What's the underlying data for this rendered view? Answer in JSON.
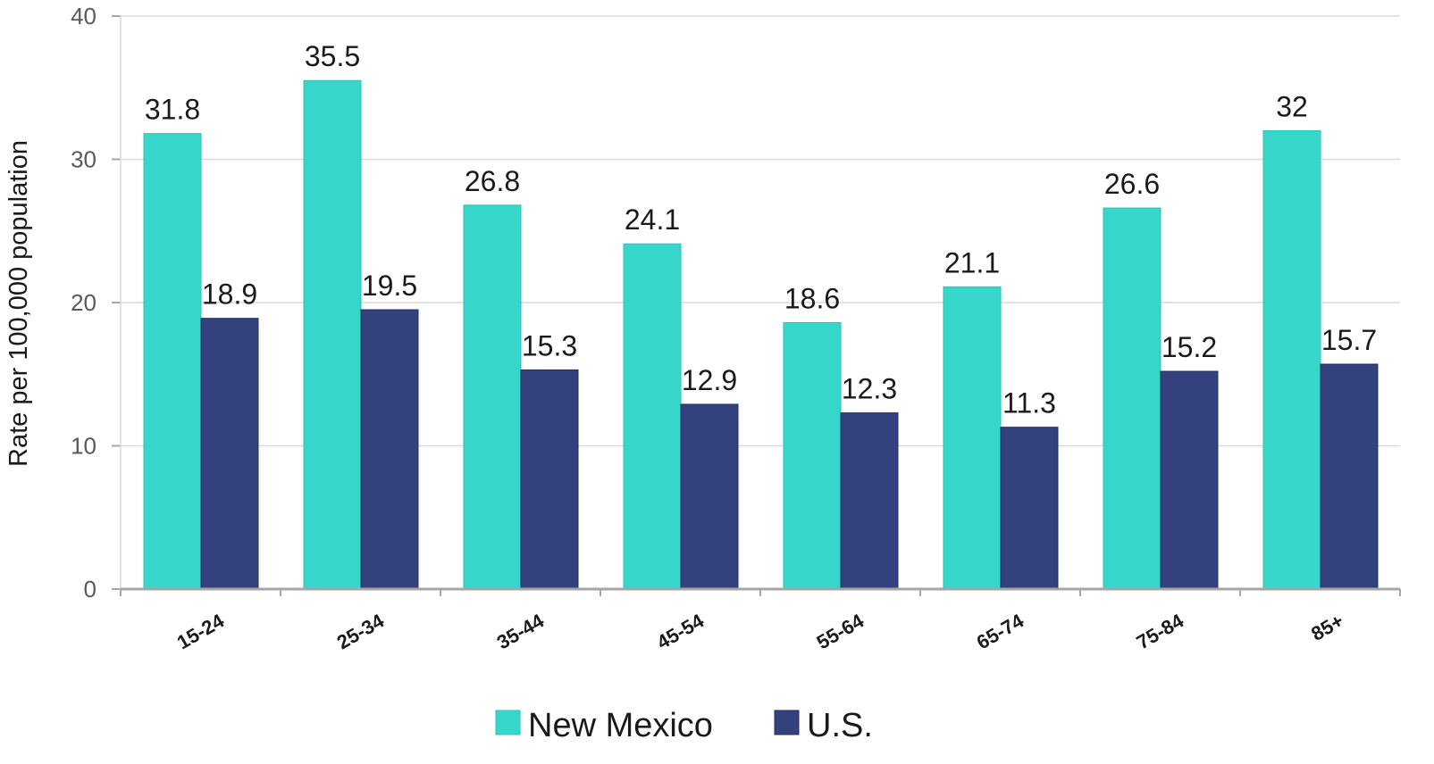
{
  "chart_data": {
    "type": "bar",
    "title": "",
    "xlabel": "",
    "ylabel": "Rate per 100,000 population",
    "ylim": [
      0,
      40
    ],
    "yticks": [
      0,
      10,
      20,
      30,
      40
    ],
    "grid": true,
    "legend_position": "bottom",
    "categories": [
      "15-24",
      "25-34",
      "35-44",
      "45-54",
      "55-64",
      "65-74",
      "75-84",
      "85+"
    ],
    "series": [
      {
        "name": "New Mexico",
        "color": "#36D6CB",
        "values": [
          31.8,
          35.5,
          26.8,
          24.1,
          18.6,
          21.1,
          26.6,
          32
        ],
        "labels": [
          "31.8",
          "35.5",
          "26.8",
          "24.1",
          "18.6",
          "21.1",
          "26.6",
          "32"
        ]
      },
      {
        "name": "U.S.",
        "color": "#33417C",
        "values": [
          18.9,
          19.5,
          15.3,
          12.9,
          12.3,
          11.3,
          15.2,
          15.7
        ],
        "labels": [
          "18.9",
          "19.5",
          "15.3",
          "12.9",
          "12.3",
          "11.3",
          "15.2",
          "15.7"
        ]
      }
    ]
  }
}
